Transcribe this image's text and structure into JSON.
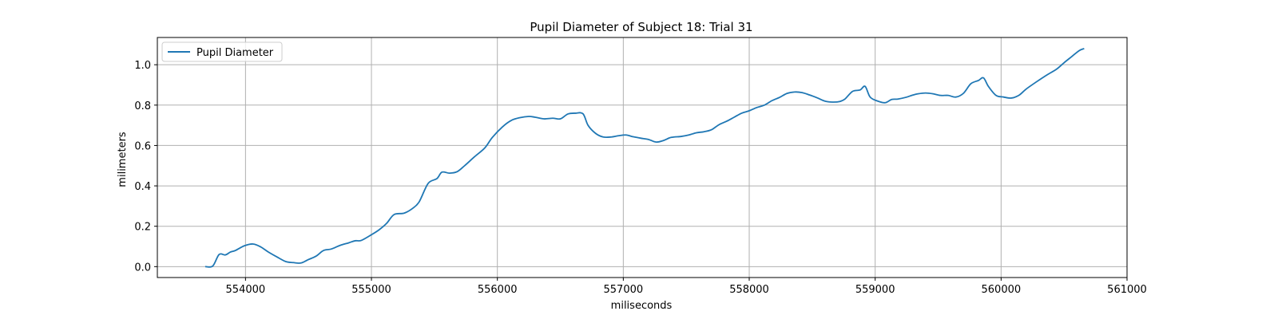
{
  "chart_data": {
    "type": "line",
    "title": "Pupil Diameter of Subject 18: Trial 31",
    "xlabel": "miliseconds",
    "ylabel": "milimeters",
    "xlim": [
      553300,
      561000
    ],
    "ylim": [
      -0.054,
      1.135
    ],
    "xticks": [
      554000,
      555000,
      556000,
      557000,
      558000,
      559000,
      560000,
      561000
    ],
    "yticks": [
      0.0,
      0.2,
      0.4,
      0.6,
      0.8,
      1.0
    ],
    "grid": true,
    "legend_position": "top-left",
    "series": [
      {
        "name": "Pupil Diameter",
        "color": "#1f77b4",
        "x": [
          553680,
          553740,
          553790,
          553840,
          553880,
          553920,
          553990,
          554060,
          554120,
          554180,
          554250,
          554320,
          554380,
          554440,
          554500,
          554560,
          554620,
          554680,
          554750,
          554820,
          554870,
          554920,
          555000,
          555060,
          555120,
          555180,
          555260,
          555330,
          555380,
          555450,
          555520,
          555560,
          555620,
          555680,
          555740,
          555820,
          555900,
          555960,
          556040,
          556110,
          556180,
          556250,
          556300,
          556370,
          556440,
          556500,
          556560,
          556620,
          556680,
          556720,
          556780,
          556840,
          556900,
          556960,
          557020,
          557080,
          557140,
          557200,
          557260,
          557320,
          557380,
          557460,
          557520,
          557580,
          557640,
          557700,
          557760,
          557820,
          557880,
          557940,
          558000,
          558060,
          558120,
          558180,
          558240,
          558300,
          558360,
          558420,
          558480,
          558540,
          558600,
          558660,
          558720,
          558760,
          558820,
          558880,
          558920,
          558960,
          559020,
          559080,
          559130,
          559180,
          559240,
          559300,
          559340,
          559400,
          559460,
          559520,
          559580,
          559640,
          559700,
          559760,
          559820,
          559860,
          559900,
          559960,
          560020,
          560080,
          560140,
          560200,
          560280,
          560360,
          560440,
          560500,
          560560,
          560620,
          560660
        ],
        "y": [
          0.0,
          0.003,
          0.06,
          0.058,
          0.072,
          0.08,
          0.103,
          0.112,
          0.098,
          0.073,
          0.048,
          0.025,
          0.02,
          0.018,
          0.035,
          0.052,
          0.08,
          0.087,
          0.105,
          0.118,
          0.128,
          0.13,
          0.158,
          0.182,
          0.214,
          0.258,
          0.265,
          0.29,
          0.322,
          0.412,
          0.436,
          0.468,
          0.463,
          0.47,
          0.5,
          0.545,
          0.588,
          0.64,
          0.692,
          0.724,
          0.738,
          0.744,
          0.74,
          0.732,
          0.735,
          0.732,
          0.756,
          0.76,
          0.757,
          0.7,
          0.66,
          0.642,
          0.642,
          0.648,
          0.652,
          0.643,
          0.636,
          0.63,
          0.617,
          0.625,
          0.64,
          0.645,
          0.652,
          0.663,
          0.668,
          0.678,
          0.703,
          0.72,
          0.74,
          0.76,
          0.772,
          0.788,
          0.8,
          0.822,
          0.838,
          0.858,
          0.865,
          0.862,
          0.85,
          0.836,
          0.82,
          0.815,
          0.818,
          0.83,
          0.868,
          0.875,
          0.893,
          0.84,
          0.82,
          0.812,
          0.828,
          0.83,
          0.838,
          0.85,
          0.856,
          0.86,
          0.856,
          0.848,
          0.848,
          0.84,
          0.858,
          0.906,
          0.922,
          0.935,
          0.892,
          0.848,
          0.84,
          0.835,
          0.848,
          0.88,
          0.915,
          0.948,
          0.978,
          1.01,
          1.04,
          1.07,
          1.08
        ]
      }
    ]
  }
}
